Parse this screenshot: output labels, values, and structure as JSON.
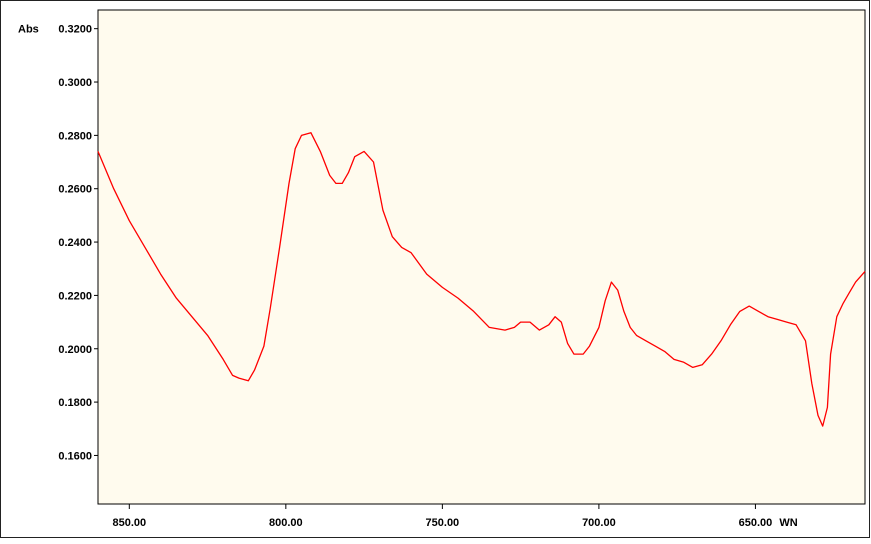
{
  "chart_data": {
    "type": "line",
    "title": "",
    "xlabel": "WN",
    "ylabel": "Abs",
    "x_reversed": true,
    "xlim": [
      860,
      615
    ],
    "ylim": [
      0.1418,
      0.327
    ],
    "grid": false,
    "x_ticks": [
      {
        "value": 850,
        "label": "850.00"
      },
      {
        "value": 800,
        "label": "800.00"
      },
      {
        "value": 750,
        "label": "750.00"
      },
      {
        "value": 700,
        "label": "700.00"
      },
      {
        "value": 650,
        "label": "650.00"
      }
    ],
    "y_ticks": [
      {
        "value": 0.32,
        "label": "0.3200"
      },
      {
        "value": 0.3,
        "label": "0.3000"
      },
      {
        "value": 0.28,
        "label": "0.2800"
      },
      {
        "value": 0.26,
        "label": "0.2600"
      },
      {
        "value": 0.24,
        "label": "0.2400"
      },
      {
        "value": 0.22,
        "label": "0.2200"
      },
      {
        "value": 0.2,
        "label": "0.2000"
      },
      {
        "value": 0.18,
        "label": "0.1800"
      },
      {
        "value": 0.16,
        "label": "0.1600"
      }
    ],
    "colors": {
      "line": "#ff0000",
      "plot_background": "#fffbee",
      "frame": "#000000"
    },
    "series": [
      {
        "x": [
          860,
          855,
          850,
          845,
          840,
          835,
          830,
          825,
          820,
          817,
          815,
          812,
          810,
          807,
          805,
          802,
          799,
          797,
          795,
          792,
          789,
          786,
          784,
          782,
          780,
          778,
          775,
          772,
          769,
          766,
          763,
          760,
          755,
          750,
          745,
          740,
          735,
          730,
          727,
          725,
          722,
          719,
          716,
          714,
          712,
          710,
          708,
          705,
          703,
          700,
          698,
          696,
          694,
          692,
          690,
          688,
          685,
          682,
          679,
          676,
          673,
          670,
          667,
          664,
          661,
          658,
          655,
          652,
          649,
          646,
          643,
          640,
          637,
          634,
          632,
          630,
          628.5,
          627,
          626,
          624,
          622,
          620,
          618,
          615
        ],
        "y": [
          0.274,
          0.26,
          0.248,
          0.238,
          0.228,
          0.219,
          0.212,
          0.205,
          0.196,
          0.19,
          0.189,
          0.188,
          0.192,
          0.201,
          0.215,
          0.238,
          0.262,
          0.275,
          0.28,
          0.281,
          0.274,
          0.265,
          0.262,
          0.262,
          0.266,
          0.272,
          0.274,
          0.27,
          0.252,
          0.242,
          0.238,
          0.236,
          0.228,
          0.223,
          0.219,
          0.214,
          0.208,
          0.207,
          0.208,
          0.21,
          0.21,
          0.207,
          0.209,
          0.212,
          0.21,
          0.202,
          0.198,
          0.198,
          0.201,
          0.208,
          0.218,
          0.225,
          0.222,
          0.214,
          0.208,
          0.205,
          0.203,
          0.201,
          0.199,
          0.196,
          0.195,
          0.193,
          0.194,
          0.198,
          0.203,
          0.209,
          0.214,
          0.216,
          0.214,
          0.212,
          0.211,
          0.21,
          0.209,
          0.203,
          0.187,
          0.175,
          0.171,
          0.178,
          0.198,
          0.212,
          0.217,
          0.221,
          0.225,
          0.229
        ]
      }
    ]
  }
}
